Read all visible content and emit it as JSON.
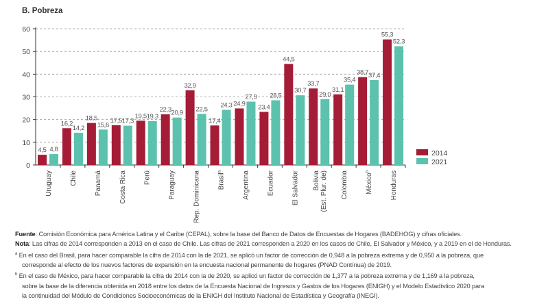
{
  "title": "B. Pobreza",
  "chart_data": {
    "type": "bar",
    "title": "B. Pobreza",
    "categories": [
      "Uruguay",
      "Chile",
      "Panamá",
      "Costa Rica",
      "Perú",
      "Paraguay",
      "Rep. Dominicana",
      "Brasil",
      "Argentina",
      "Ecuador",
      "El Salvador",
      "Bolivia (Est. Plur. de)",
      "Colombia",
      "México",
      "Honduras"
    ],
    "category_superscripts": {
      "Brasil": "a",
      "México": "b"
    },
    "series": [
      {
        "name": "2014",
        "color": "#a51c36",
        "values": [
          4.5,
          16.2,
          18.5,
          17.5,
          19.5,
          22.3,
          32.9,
          17.4,
          24.9,
          23.4,
          44.5,
          33.7,
          31.1,
          38.7,
          55.3
        ]
      },
      {
        "name": "2021",
        "color": "#5cc2ae",
        "values": [
          4.8,
          14.2,
          15.6,
          17.3,
          19.3,
          20.9,
          22.5,
          24.3,
          27.9,
          28.5,
          30.7,
          29.0,
          35.4,
          37.4,
          52.3
        ]
      }
    ],
    "ylim": [
      0,
      60
    ],
    "yticks": [
      0,
      10,
      20,
      30,
      40,
      50,
      60
    ],
    "grid": "dashed horizontal",
    "legend": "right",
    "decimal_separator": ","
  },
  "notes": {
    "fuente_label": "Fuente",
    "fuente": ": Comisión Económica para América Latina y el Caribe (CEPAL), sobre la base del Banco de Datos de Encuestas de Hogares (BADEHOG) y cifras oficiales.",
    "nota_label": "Nota",
    "nota": ":    Las cifras de 2014 corresponden a 2013 en el caso de Chile. Las cifras de 2021 corresponden a 2020 en los casos de Chile, El Salvador y México, y a 2019 en el de Honduras.",
    "a_mark": "a",
    "a_line1": " En el caso del Brasil, para hacer comparable la cifra de 2014 con la de 2021, se aplicó un factor de corrección de 0,948 a la pobreza extrema y de 0,950 a la pobreza, que",
    "a_line2": "corresponde al efecto de los nuevos factores de expansión en la encuesta nacional permanente de hogares (PNAD Contínua) de 2019.",
    "b_mark": "b",
    "b_line1": " En el caso de México, para hacer comparable la cifra de 2014 con la de 2020, se aplicó un factor de corrección de 1,377 a la pobreza extrema y de 1,169 a la pobreza,",
    "b_line2": "sobre la base de la diferencia obtenida en 2018 entre los datos de la Encuesta Nacional de Ingresos y Gastos de los Hogares (ENIGH) y el Modelo Estadístico 2020 para",
    "b_line3": "la continuidad del Módulo de Condiciones Socioeconómicas de la ENIGH del Instituto Nacional de Estadística y Geografía (INEGI)."
  }
}
